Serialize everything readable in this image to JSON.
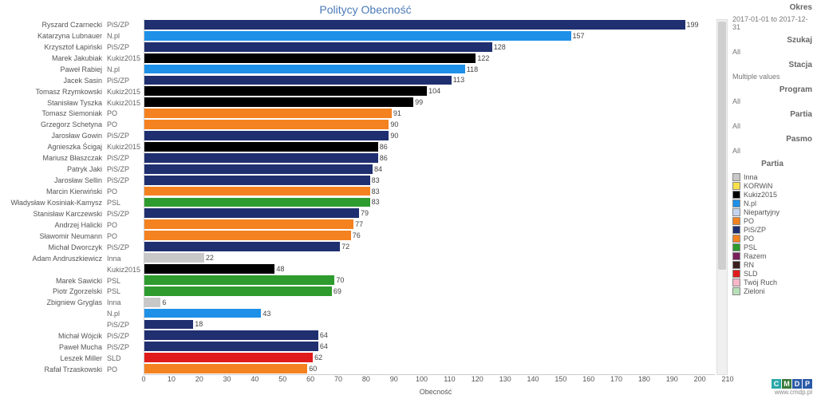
{
  "chart": {
    "title": "Politycy Obecność",
    "xlabel": "Obecność",
    "xlim": [
      0,
      210
    ],
    "xtick_step": 10,
    "background_color": "#ffffff",
    "title_color": "#4a7ab8",
    "title_fontsize": 14,
    "label_fontsize": 9,
    "type": "bar-horizontal"
  },
  "party_colors": {
    "PiS/ZP": "#1f2f6f",
    "N.pl": "#1e90e8",
    "Kukiz2015": "#000000",
    "PO": "#f58220",
    "PSL": "#2e9b2e",
    "Inna": "#c8c8c8",
    "SLD": "#e01b1b",
    "KORWiN": "#f7e04a",
    "Niepartyjny": "#c4d4ef",
    "Razem": "#7a1f5a",
    "RN": "#3a1f1f",
    "Twój Ruch": "#f5b6c8",
    "Zieloni": "#b8e0b8"
  },
  "rows": [
    {
      "name": "Ryszard Czarnecki",
      "party": "PiS/ZP",
      "value": 199
    },
    {
      "name": "Katarzyna Lubnauer",
      "party": "N.pl",
      "value": 157
    },
    {
      "name": "Krzysztof Łapiński",
      "party": "PiS/ZP",
      "value": 128
    },
    {
      "name": "Marek Jakubiak",
      "party": "Kukiz2015",
      "value": 122
    },
    {
      "name": "Paweł Rabiej",
      "party": "N.pl",
      "value": 118
    },
    {
      "name": "Jacek Sasin",
      "party": "PiS/ZP",
      "value": 113
    },
    {
      "name": "Tomasz Rzymkowski",
      "party": "Kukiz2015",
      "value": 104
    },
    {
      "name": "Stanisław Tyszka",
      "party": "Kukiz2015",
      "value": 99
    },
    {
      "name": "Tomasz Siemoniak",
      "party": "PO",
      "value": 91
    },
    {
      "name": "Grzegorz Schetyna",
      "party": "PO",
      "value": 90
    },
    {
      "name": "Jarosław Gowin",
      "party": "PiS/ZP",
      "value": 90
    },
    {
      "name": "Agnieszka Ścigaj",
      "party": "Kukiz2015",
      "value": 86
    },
    {
      "name": "Mariusz Błaszczak",
      "party": "PiS/ZP",
      "value": 86
    },
    {
      "name": "Patryk Jaki",
      "party": "PiS/ZP",
      "value": 84
    },
    {
      "name": "Jarosław Sellin",
      "party": "PiS/ZP",
      "value": 83
    },
    {
      "name": "Marcin Kierwiński",
      "party": "PO",
      "value": 83
    },
    {
      "name": "Władysław Kosiniak-Kamysz",
      "party": "PSL",
      "value": 83
    },
    {
      "name": "Stanisław Karczewski",
      "party": "PiS/ZP",
      "value": 79
    },
    {
      "name": "Andrzej Halicki",
      "party": "PO",
      "value": 77
    },
    {
      "name": "Sławomir Neumann",
      "party": "PO",
      "value": 76
    },
    {
      "name": "Michał Dworczyk",
      "party": "PiS/ZP",
      "value": 72
    },
    {
      "name": "Adam Andruszkiewicz",
      "party": "Inna",
      "value": 22
    },
    {
      "name": "",
      "party": "Kukiz2015",
      "value": 48
    },
    {
      "name": "Marek Sawicki",
      "party": "PSL",
      "value": 70
    },
    {
      "name": "Piotr Zgorzelski",
      "party": "PSL",
      "value": 69
    },
    {
      "name": "Zbigniew Gryglas",
      "party": "Inna",
      "value": 6
    },
    {
      "name": "",
      "party": "N.pl",
      "value": 43
    },
    {
      "name": "",
      "party": "PiS/ZP",
      "value": 18
    },
    {
      "name": "Michał Wójcik",
      "party": "PiS/ZP",
      "value": 64
    },
    {
      "name": "Paweł Mucha",
      "party": "PiS/ZP",
      "value": 64
    },
    {
      "name": "Leszek Miller",
      "party": "SLD",
      "value": 62
    },
    {
      "name": "Rafał Trzaskowski",
      "party": "PO",
      "value": 60
    }
  ],
  "filters": {
    "okres_label": "Okres",
    "okres_value": "2017-01-01 to 2017-12-31",
    "szukaj_label": "Szukaj",
    "szukaj_value": "All",
    "stacja_label": "Stacja",
    "stacja_value": "Multiple values",
    "program_label": "Program",
    "program_value": "All",
    "partia_label": "Partia",
    "partia_value": "All",
    "pasmo_label": "Pasmo",
    "pasmo_value": "All"
  },
  "legend": {
    "title": "Partia",
    "items": [
      "Inna",
      "KORWiN",
      "Kukiz2015",
      "N.pl",
      "Niepartyjny",
      "PO",
      "PiS/ZP",
      "PO",
      "PSL",
      "Razem",
      "RN",
      "SLD",
      "Twój Ruch",
      "Zieloni"
    ],
    "items_actual": [
      "Inna",
      "KORWiN",
      "Kukiz2015",
      "N.pl",
      "Niepartyjny",
      "PO",
      "PiS/ZP",
      "PO_dup",
      "PSL",
      "Razem",
      "RN",
      "SLD",
      "Twój Ruch",
      "Zieloni"
    ]
  },
  "legend_display": [
    {
      "label": "Inna",
      "color": "#c8c8c8"
    },
    {
      "label": "KORWiN",
      "color": "#f7e04a"
    },
    {
      "label": "Kukiz2015",
      "color": "#000000"
    },
    {
      "label": "N.pl",
      "color": "#1e90e8"
    },
    {
      "label": "Niepartyjny",
      "color": "#c4d4ef"
    },
    {
      "label": "PO",
      "color": "#f58220"
    },
    {
      "label": "PiS/ZP",
      "color": "#1f2f6f"
    },
    {
      "label": "PO",
      "color": "#f58220"
    },
    {
      "label": "PSL",
      "color": "#2e9b2e"
    },
    {
      "label": "Razem",
      "color": "#7a1f5a"
    },
    {
      "label": "RN",
      "color": "#3a1f1f"
    },
    {
      "label": "SLD",
      "color": "#e01b1b"
    },
    {
      "label": "Twój Ruch",
      "color": "#f5b6c8"
    },
    {
      "label": "Zieloni",
      "color": "#b8e0b8"
    }
  ],
  "logo": {
    "letters": [
      "C",
      "M",
      "D",
      "P"
    ],
    "colors": [
      "#2aa8a8",
      "#3a7a3a",
      "#2a5aa8",
      "#2a5aa8"
    ],
    "url": "www.cmdp.pl"
  }
}
